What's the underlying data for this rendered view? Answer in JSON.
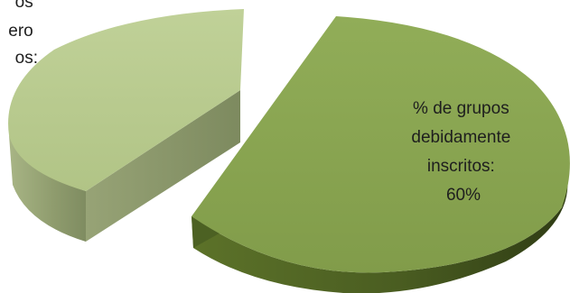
{
  "chart_data": {
    "type": "pie",
    "style": "3d-exploded",
    "slices": [
      {
        "label_lines": [
          "% de grupos",
          "debidamente",
          "inscritos:",
          "60%"
        ],
        "value": 60,
        "top_color": "#8aa551",
        "side_color": "#4d6123"
      },
      {
        "label_lines": [
          "os",
          "ero",
          "os:"
        ],
        "value": 40,
        "top_color": "#b9cb8f",
        "side_color": "#919f70"
      }
    ]
  }
}
